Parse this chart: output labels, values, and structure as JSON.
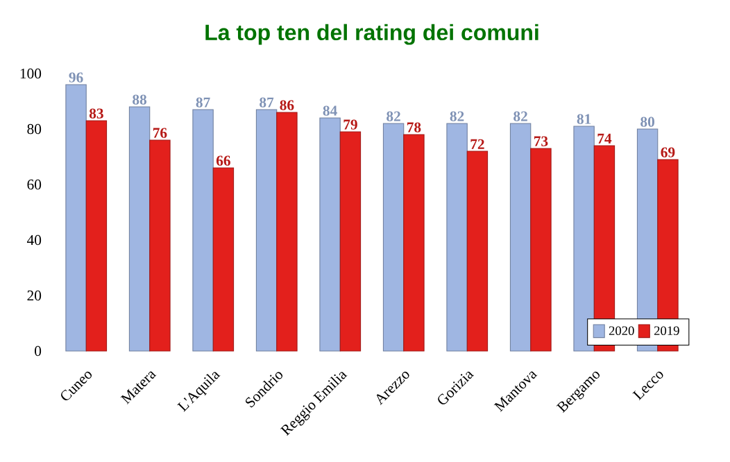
{
  "chart_data": {
    "type": "bar",
    "title": "La top ten del rating dei comuni",
    "categories": [
      "Cuneo",
      "Matera",
      "L'Aquila",
      "Sondrio",
      "Reggio Emilia",
      "Arezzo",
      "Gorizia",
      "Mantova",
      "Bergamo",
      "Lecco"
    ],
    "series": [
      {
        "name": "2020",
        "color": "#9fb6e2",
        "values": [
          96,
          88,
          87,
          87,
          84,
          82,
          82,
          82,
          81,
          80
        ]
      },
      {
        "name": "2019",
        "color": "#e3201c",
        "values": [
          83,
          76,
          66,
          86,
          79,
          78,
          72,
          73,
          74,
          69
        ]
      }
    ],
    "ylim": [
      0,
      100
    ],
    "yticks": [
      0,
      20,
      40,
      60,
      80,
      100
    ],
    "data_labels": true,
    "legend": "bottom right"
  }
}
